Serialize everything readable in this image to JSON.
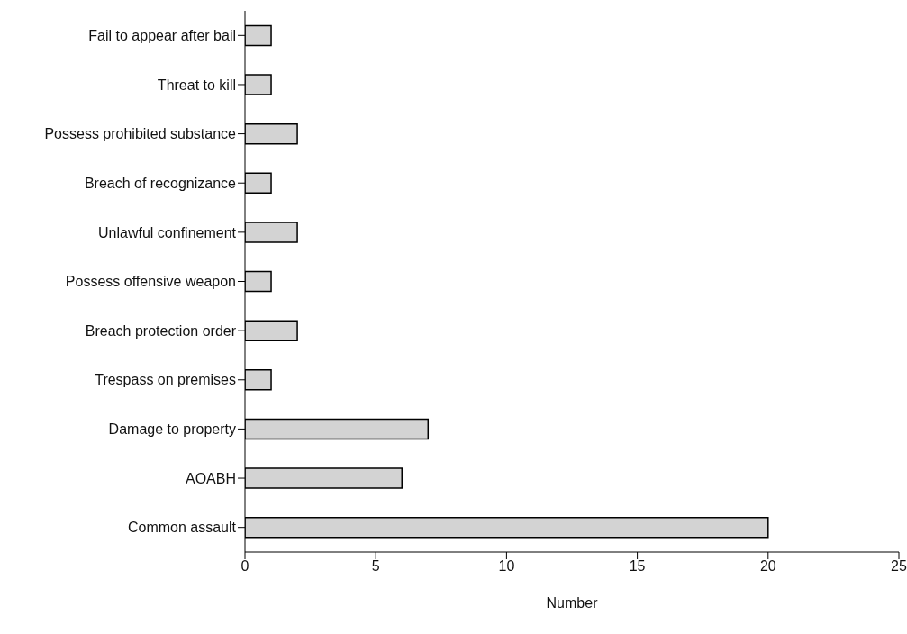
{
  "chart_data": {
    "type": "bar",
    "orientation": "horizontal",
    "xlabel": "Number",
    "categories": [
      "Fail to appear after bail",
      "Threat to kill",
      "Possess prohibited substance",
      "Breach of recognizance",
      "Unlawful confinement",
      "Possess offensive weapon",
      "Breach protection order",
      "Trespass on premises",
      "Damage to property",
      "AOABH",
      "Common assault"
    ],
    "values": [
      1,
      1,
      2,
      1,
      2,
      1,
      2,
      1,
      7,
      6,
      20
    ],
    "color": "#d3d3d3",
    "xlim": [
      0,
      25
    ],
    "xticks": [
      0,
      5,
      10,
      15,
      20,
      25
    ],
    "grid": false
  }
}
